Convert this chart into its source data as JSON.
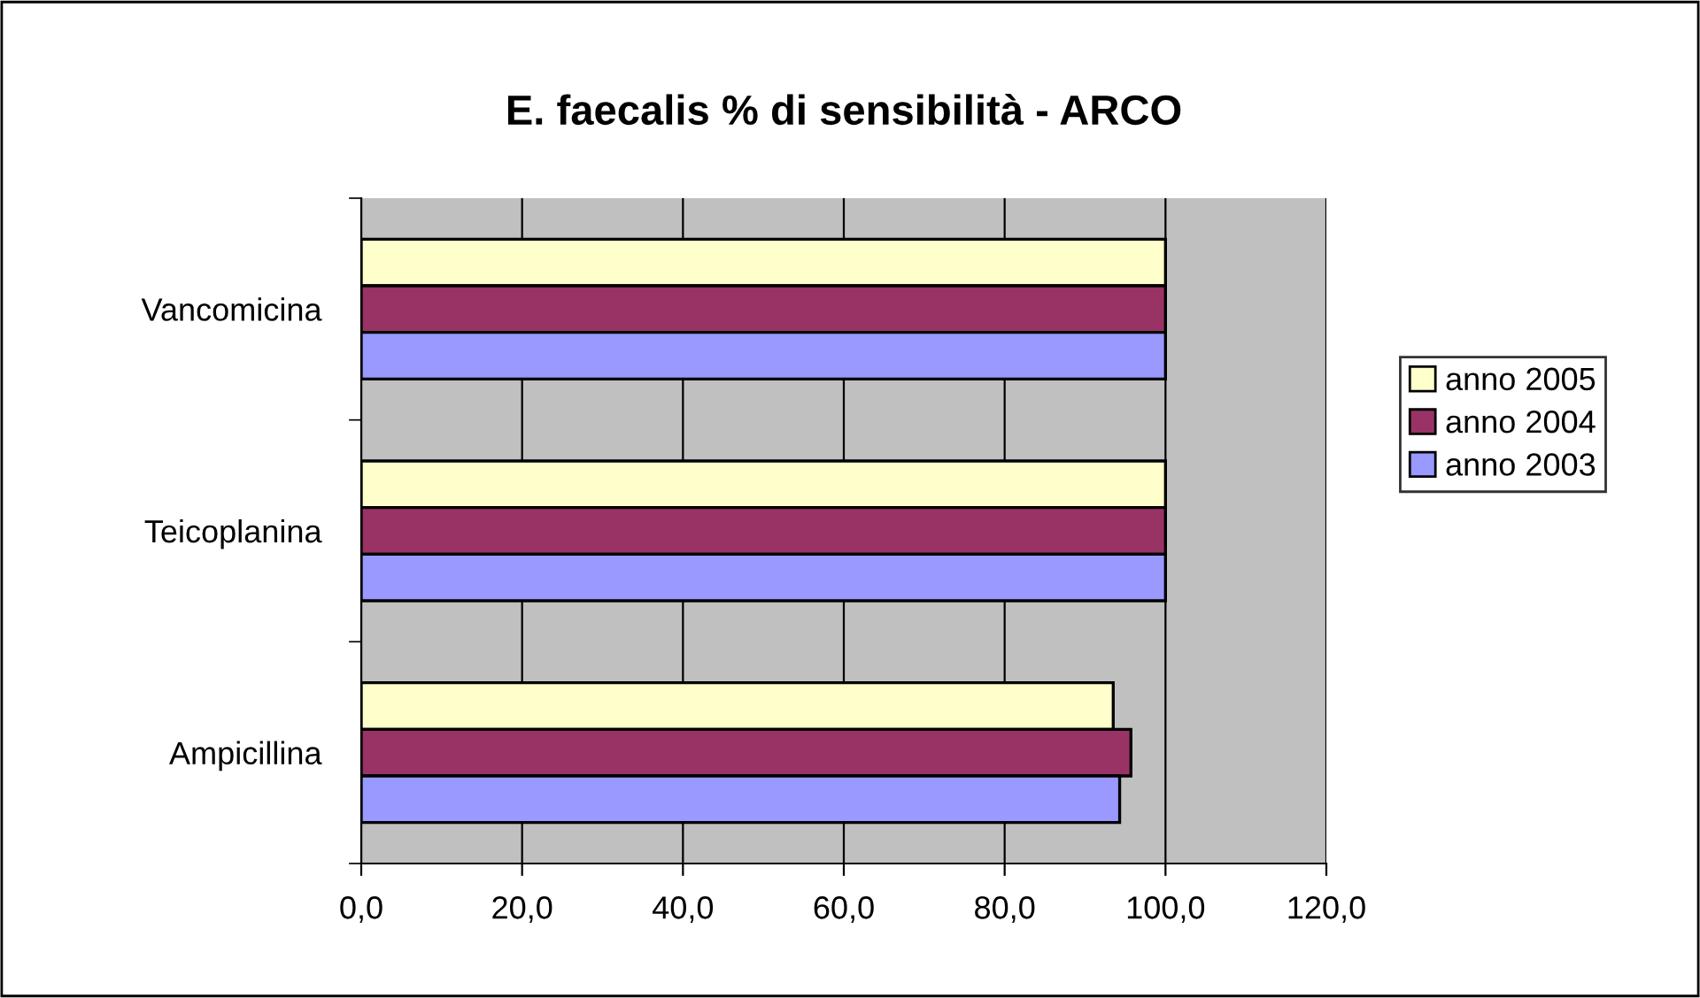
{
  "chart_data": {
    "type": "bar",
    "orientation": "horizontal",
    "title": "E. faecalis % di sensibilità - ARCO",
    "categories": [
      "Vancomicina",
      "Teicoplanina",
      "Ampicillina"
    ],
    "series": [
      {
        "name": "anno 2005",
        "color": "#ffffcc",
        "values": [
          100,
          100,
          93.5
        ]
      },
      {
        "name": "anno 2004",
        "color": "#993366",
        "values": [
          100,
          100,
          95.7
        ]
      },
      {
        "name": "anno 2003",
        "color": "#9999ff",
        "values": [
          100,
          100,
          94.3
        ]
      }
    ],
    "xlim": [
      0,
      120
    ],
    "xticks": [
      {
        "value": 0,
        "label": "0,0"
      },
      {
        "value": 20,
        "label": "20,0"
      },
      {
        "value": 40,
        "label": "40,0"
      },
      {
        "value": 60,
        "label": "60,0"
      },
      {
        "value": 80,
        "label": "80,0"
      },
      {
        "value": 100,
        "label": "100,0"
      },
      {
        "value": 120,
        "label": "120,0"
      }
    ],
    "grid": "x",
    "legend": "right"
  }
}
